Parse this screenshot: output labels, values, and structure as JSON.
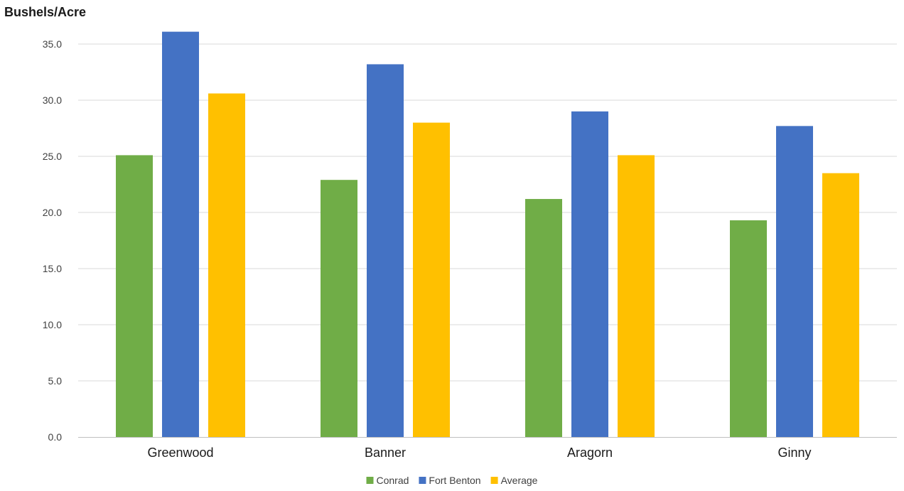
{
  "chart_data": {
    "type": "bar",
    "ylabel": "Bushels/Acre",
    "xlabel": "",
    "categories": [
      "Greenwood",
      "Banner",
      "Aragorn",
      "Ginny"
    ],
    "series": [
      {
        "name": "Conrad",
        "color": "#70ad47",
        "values": [
          25.1,
          22.9,
          21.2,
          19.3
        ]
      },
      {
        "name": "Fort Benton",
        "color": "#4472c4",
        "values": [
          36.1,
          33.2,
          29.0,
          27.7
        ]
      },
      {
        "name": "Average",
        "color": "#ffc000",
        "values": [
          30.6,
          28.0,
          25.1,
          23.5
        ]
      }
    ],
    "ylim": [
      0,
      35
    ],
    "yticks": [
      "0.0",
      "5.0",
      "10.0",
      "15.0",
      "20.0",
      "25.0",
      "30.0",
      "35.0"
    ],
    "grid": true,
    "legend": "bottom"
  }
}
